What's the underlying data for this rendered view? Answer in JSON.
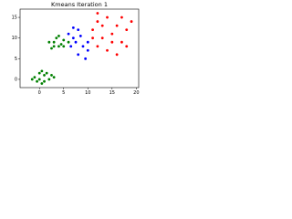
{
  "chart_data": {
    "type": "scatter",
    "title": "Kmeans Iteration 1",
    "series": [
      {
        "color": "#008000",
        "x": [
          0,
          1,
          -1,
          0.5,
          2,
          1.5,
          -0.5,
          0,
          2.5,
          1,
          -1.5,
          3,
          0.5,
          3,
          4,
          5,
          3.5,
          4.5,
          2,
          5,
          3,
          4,
          6,
          2.5
        ],
        "values": [
          0,
          1,
          0.5,
          -1,
          0,
          1.5,
          -0.5,
          1.5,
          1,
          -0.5,
          0,
          0.5,
          2,
          9,
          8,
          9.5,
          10,
          8.5,
          9,
          8,
          8,
          10.5,
          9,
          7.5
        ]
      },
      {
        "color": "#0000ff",
        "x": [
          6,
          7,
          8,
          7.5,
          9,
          8,
          9.5,
          6.5,
          10,
          8.5,
          7,
          10
        ],
        "values": [
          11,
          10,
          12,
          9,
          8,
          6,
          5,
          8,
          7,
          10.5,
          12.5,
          9
        ]
      },
      {
        "color": "#ff0000",
        "x": [
          11,
          12,
          13,
          14,
          15,
          16,
          17,
          18,
          12,
          14,
          16,
          19,
          13,
          15,
          11,
          17,
          18,
          12
        ],
        "values": [
          12,
          14,
          10,
          15,
          11,
          13,
          9,
          12,
          8,
          7,
          6,
          14,
          13,
          9,
          10,
          15,
          8,
          16
        ]
      }
    ],
    "xlim": [
      -4,
      20.5
    ],
    "xticks": [
      0,
      5,
      10,
      15,
      20
    ],
    "ylim": [
      -2,
      17
    ],
    "yticks": [
      0,
      5,
      10,
      15
    ],
    "grid": false
  }
}
